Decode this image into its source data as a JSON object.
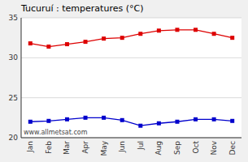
{
  "chart_data": {
    "type": "line",
    "title": "Tucuruí : temperatures (°C)",
    "categories": [
      "Jan",
      "Feb",
      "Mar",
      "Apr",
      "May",
      "Jun",
      "Jul",
      "Aug",
      "Sep",
      "Oct",
      "Nov",
      "Dec"
    ],
    "series": [
      {
        "color": "#dd0000",
        "marker": "square",
        "values": [
          31.8,
          31.4,
          31.7,
          32.0,
          32.4,
          32.5,
          33.0,
          33.4,
          33.5,
          33.5,
          33.0,
          32.5
        ]
      },
      {
        "color": "#0000cc",
        "marker": "square",
        "values": [
          22.0,
          22.1,
          22.3,
          22.5,
          22.5,
          22.2,
          21.5,
          21.8,
          22.0,
          22.3,
          22.3,
          22.1
        ]
      }
    ],
    "ylim": [
      20,
      35
    ],
    "yticks": [
      20,
      25,
      30,
      35
    ],
    "grid": true,
    "annotations": [
      "www.allmetsat.com"
    ]
  }
}
